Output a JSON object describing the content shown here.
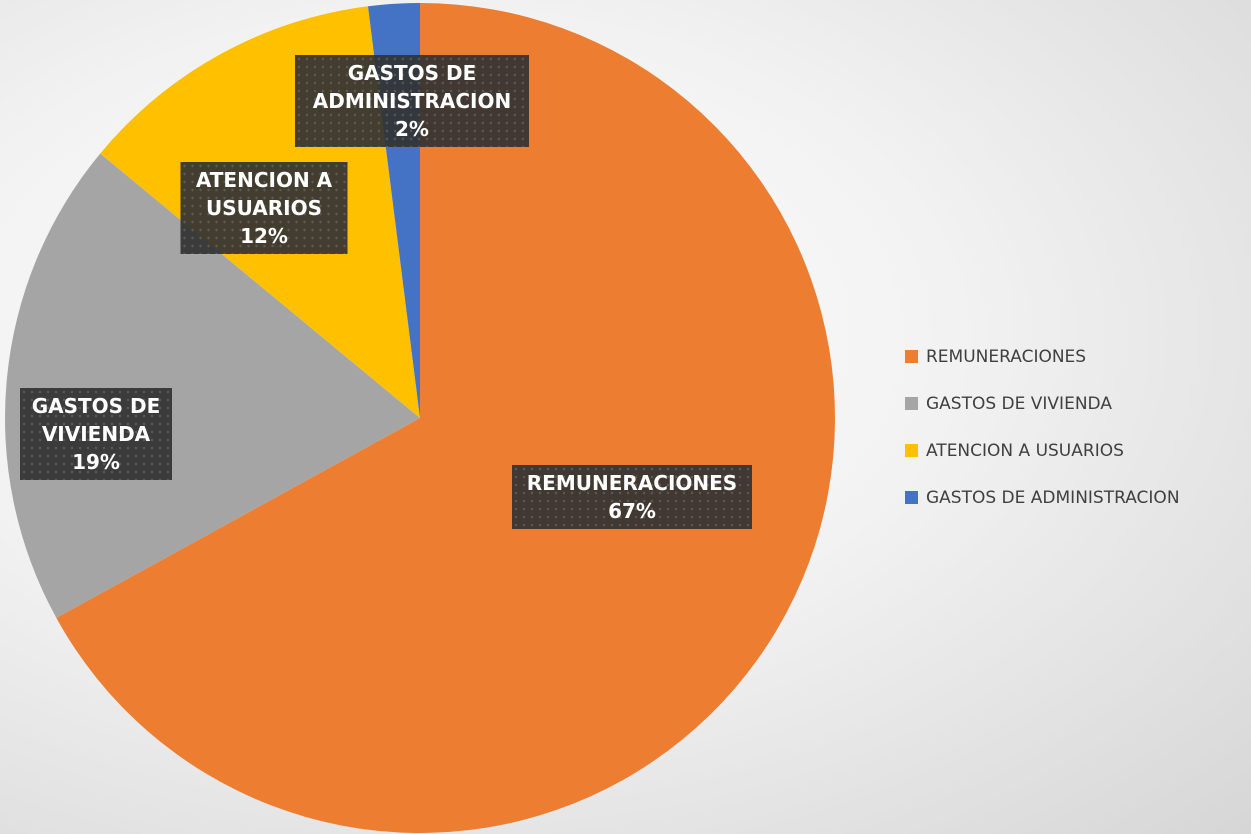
{
  "chart_data": {
    "type": "pie",
    "categories": [
      "REMUNERACIONES",
      "GASTOS DE VIVIENDA",
      "ATENCION A USUARIOS",
      "GASTOS DE ADMINISTRACION"
    ],
    "values": [
      67,
      19,
      12,
      2
    ],
    "value_labels": [
      "67%",
      "19%",
      "12%",
      "2%"
    ],
    "colors": [
      "#ed7d31",
      "#a5a5a5",
      "#ffc000",
      "#4472c4"
    ],
    "legend": "right"
  }
}
